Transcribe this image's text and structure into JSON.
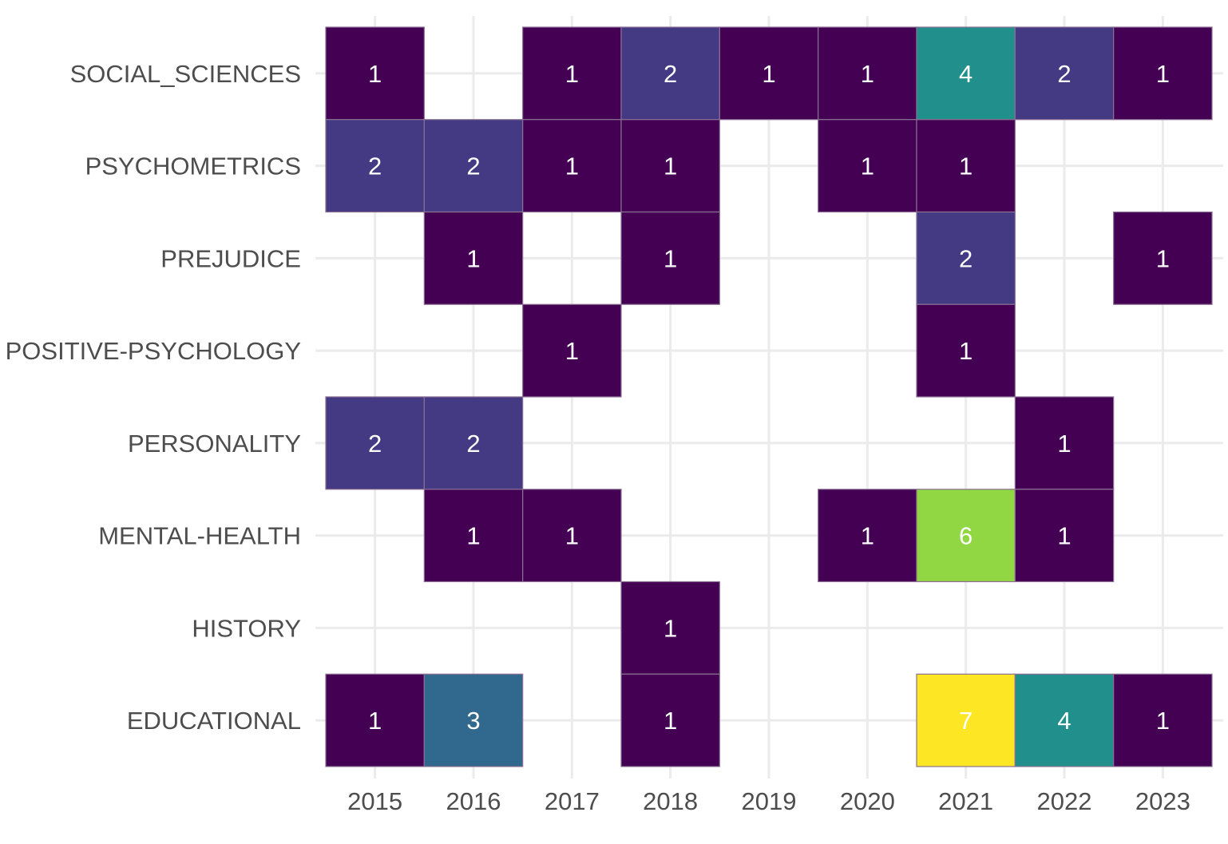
{
  "chart_data": {
    "type": "heatmap",
    "title": "",
    "xlabel": "",
    "ylabel": "",
    "x_categories": [
      "2015",
      "2016",
      "2017",
      "2018",
      "2019",
      "2020",
      "2021",
      "2022",
      "2023"
    ],
    "y_categories": [
      "SOCIAL_SCIENCES",
      "PSYCHOMETRICS",
      "PREJUDICE",
      "POSITIVE-PSYCHOLOGY",
      "PERSONALITY",
      "MENTAL-HEALTH",
      "HISTORY",
      "EDUCATIONAL"
    ],
    "cells": [
      {
        "x": "2015",
        "y": "SOCIAL_SCIENCES",
        "value": 1
      },
      {
        "x": "2017",
        "y": "SOCIAL_SCIENCES",
        "value": 1
      },
      {
        "x": "2018",
        "y": "SOCIAL_SCIENCES",
        "value": 2
      },
      {
        "x": "2019",
        "y": "SOCIAL_SCIENCES",
        "value": 1
      },
      {
        "x": "2020",
        "y": "SOCIAL_SCIENCES",
        "value": 1
      },
      {
        "x": "2021",
        "y": "SOCIAL_SCIENCES",
        "value": 4
      },
      {
        "x": "2022",
        "y": "SOCIAL_SCIENCES",
        "value": 2
      },
      {
        "x": "2023",
        "y": "SOCIAL_SCIENCES",
        "value": 1
      },
      {
        "x": "2015",
        "y": "PSYCHOMETRICS",
        "value": 2
      },
      {
        "x": "2016",
        "y": "PSYCHOMETRICS",
        "value": 2
      },
      {
        "x": "2017",
        "y": "PSYCHOMETRICS",
        "value": 1
      },
      {
        "x": "2018",
        "y": "PSYCHOMETRICS",
        "value": 1
      },
      {
        "x": "2020",
        "y": "PSYCHOMETRICS",
        "value": 1
      },
      {
        "x": "2021",
        "y": "PSYCHOMETRICS",
        "value": 1
      },
      {
        "x": "2016",
        "y": "PREJUDICE",
        "value": 1
      },
      {
        "x": "2018",
        "y": "PREJUDICE",
        "value": 1
      },
      {
        "x": "2021",
        "y": "PREJUDICE",
        "value": 2
      },
      {
        "x": "2023",
        "y": "PREJUDICE",
        "value": 1
      },
      {
        "x": "2017",
        "y": "POSITIVE-PSYCHOLOGY",
        "value": 1
      },
      {
        "x": "2021",
        "y": "POSITIVE-PSYCHOLOGY",
        "value": 1
      },
      {
        "x": "2015",
        "y": "PERSONALITY",
        "value": 2
      },
      {
        "x": "2016",
        "y": "PERSONALITY",
        "value": 2
      },
      {
        "x": "2022",
        "y": "PERSONALITY",
        "value": 1
      },
      {
        "x": "2016",
        "y": "MENTAL-HEALTH",
        "value": 1
      },
      {
        "x": "2017",
        "y": "MENTAL-HEALTH",
        "value": 1
      },
      {
        "x": "2020",
        "y": "MENTAL-HEALTH",
        "value": 1
      },
      {
        "x": "2021",
        "y": "MENTAL-HEALTH",
        "value": 6
      },
      {
        "x": "2022",
        "y": "MENTAL-HEALTH",
        "value": 1
      },
      {
        "x": "2018",
        "y": "HISTORY",
        "value": 1
      },
      {
        "x": "2015",
        "y": "EDUCATIONAL",
        "value": 1
      },
      {
        "x": "2016",
        "y": "EDUCATIONAL",
        "value": 3
      },
      {
        "x": "2018",
        "y": "EDUCATIONAL",
        "value": 1
      },
      {
        "x": "2021",
        "y": "EDUCATIONAL",
        "value": 7
      },
      {
        "x": "2022",
        "y": "EDUCATIONAL",
        "value": 4
      },
      {
        "x": "2023",
        "y": "EDUCATIONAL",
        "value": 1
      }
    ],
    "color_scale": {
      "name": "viridis",
      "domain": [
        1,
        7
      ],
      "stops": [
        "#440154",
        "#443a83",
        "#31688e",
        "#21908d",
        "#35b779",
        "#90d743",
        "#fde725"
      ]
    },
    "label_color": "#ffffff",
    "grid": true,
    "legend": "none"
  }
}
